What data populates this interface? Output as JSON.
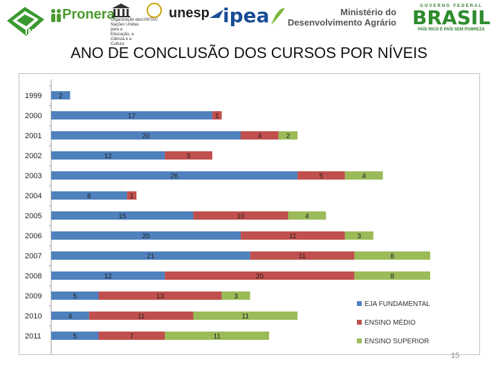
{
  "logos": {
    "incra": "INCRA",
    "pronera": "Pronera",
    "unesco": "Organização das Nações Unidas para a Educação, a Ciência e a Cultura",
    "unitau": "UNITAU",
    "unesp": "unesp",
    "ipea": "ipea",
    "mda_line1": "Ministério do",
    "mda_line2": "Desenvolvimento Agrário",
    "brasil_gov": "GOVERNO FEDERAL",
    "brasil_word": "BRASIL",
    "brasil_slogan": "PAÍS RICO É PAÍS SEM POBREZA"
  },
  "page": {
    "title": "ANO DE CONCLUSÃO DOS CURSOS POR NÍVEIS",
    "number": "15"
  },
  "colors": {
    "eja": "#4f81bd",
    "medio": "#c0504d",
    "superior": "#9bbb59"
  },
  "chart_data": {
    "type": "bar",
    "orientation": "horizontal",
    "stacked": true,
    "title": "ANO DE CONCLUSÃO DOS CURSOS POR NÍVEIS",
    "categories": [
      "1999",
      "2000",
      "2001",
      "2002",
      "2003",
      "2004",
      "2005",
      "2006",
      "2007",
      "2008",
      "2009",
      "2010",
      "2011"
    ],
    "series": [
      {
        "name": "EJA FUNDAMENTAL",
        "color": "#4f81bd",
        "values": [
          2,
          17,
          20,
          12,
          26,
          8,
          15,
          20,
          21,
          12,
          5,
          4,
          5
        ]
      },
      {
        "name": "ENSINO MÉDIO",
        "color": "#c0504d",
        "values": [
          0,
          1,
          4,
          5,
          5,
          1,
          10,
          11,
          11,
          20,
          13,
          11,
          7
        ]
      },
      {
        "name": "ENSINO SUPERIOR",
        "color": "#9bbb59",
        "values": [
          0,
          0,
          2,
          0,
          4,
          0,
          4,
          3,
          8,
          8,
          3,
          11,
          11
        ]
      }
    ],
    "xlim": [
      0,
      44
    ],
    "legend": "bottom-right",
    "grid": false
  }
}
